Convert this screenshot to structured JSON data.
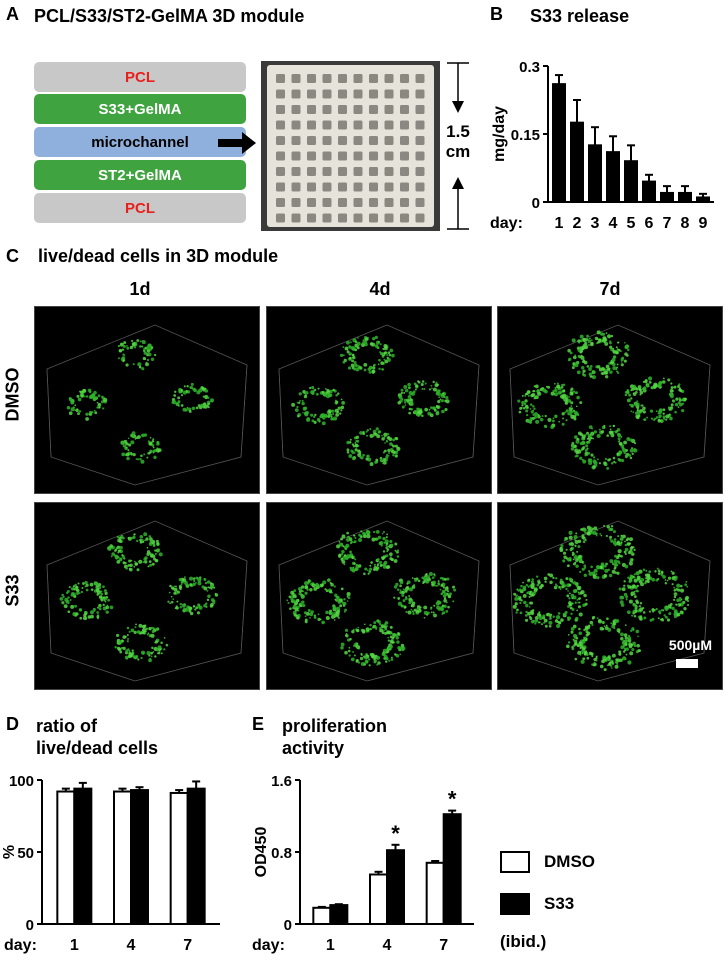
{
  "panel_a": {
    "letter": "A",
    "title": "PCL/S33/ST2-GelMA 3D module",
    "layers": [
      {
        "label": "PCL",
        "fill": "#c8c8c8",
        "text_color": "#e8201c"
      },
      {
        "label": "S33+GelMA",
        "fill": "#3fa33f",
        "text_color": "#ffffff"
      },
      {
        "label": "microchannel",
        "fill": "#8fb0dc",
        "text_color": "#000000"
      },
      {
        "label": "ST2+GelMA",
        "fill": "#3fa33f",
        "text_color": "#ffffff"
      },
      {
        "label": "PCL",
        "fill": "#c8c8c8",
        "text_color": "#e8201c"
      }
    ],
    "size_value": "1.5",
    "size_unit": "cm"
  },
  "panel_b": {
    "letter": "B",
    "title": "S33 release"
  },
  "panel_c": {
    "letter": "C",
    "title": "live/dead cells in 3D module",
    "columns": [
      "1d",
      "4d",
      "7d"
    ],
    "rows": [
      "DMSO",
      "S33"
    ],
    "scalebar": "500µM"
  },
  "panel_d": {
    "letter": "D",
    "title_line1": "ratio of",
    "title_line2": "live/dead cells"
  },
  "panel_e": {
    "letter": "E",
    "title_line1": "proliferation",
    "title_line2": "activity"
  },
  "legend": {
    "items": [
      {
        "label": "DMSO",
        "fill": "#ffffff"
      },
      {
        "label": "S33",
        "fill": "#000000"
      }
    ],
    "note": "(ibid.)"
  },
  "chart_data": [
    {
      "id": "S33-release",
      "type": "bar",
      "title": "S33 release",
      "ylabel": "mg/day",
      "xlabel": "day",
      "categories": [
        "1",
        "2",
        "3",
        "4",
        "5",
        "6",
        "7",
        "8",
        "9"
      ],
      "values": [
        0.26,
        0.175,
        0.125,
        0.11,
        0.09,
        0.045,
        0.02,
        0.02,
        0.01
      ],
      "errors": [
        0.02,
        0.05,
        0.04,
        0.035,
        0.035,
        0.015,
        0.015,
        0.015,
        0.008
      ],
      "ylim": [
        0,
        0.3
      ],
      "yticks": [
        "0",
        "0.15",
        "0.3"
      ]
    },
    {
      "id": "live-dead-ratio",
      "type": "bar",
      "title": "ratio of live/dead cells",
      "ylabel": "%",
      "xlabel": "day",
      "categories": [
        "1",
        "4",
        "7"
      ],
      "series": [
        {
          "name": "DMSO",
          "values": [
            92,
            92,
            91
          ],
          "errors": [
            2,
            2,
            2
          ]
        },
        {
          "name": "S33",
          "values": [
            94,
            93,
            94
          ],
          "errors": [
            4,
            2,
            5
          ]
        }
      ],
      "ylim": [
        0,
        100
      ],
      "yticks": [
        "0",
        "50",
        "100"
      ]
    },
    {
      "id": "proliferation",
      "type": "bar",
      "title": "proliferation activity",
      "ylabel": "OD450",
      "xlabel": "day",
      "categories": [
        "1",
        "4",
        "7"
      ],
      "series": [
        {
          "name": "DMSO",
          "values": [
            0.18,
            0.55,
            0.68
          ],
          "errors": [
            0.01,
            0.03,
            0.02
          ]
        },
        {
          "name": "S33",
          "values": [
            0.21,
            0.82,
            1.22
          ],
          "errors": [
            0.01,
            0.06,
            0.04
          ]
        }
      ],
      "significance": [
        "",
        "*",
        "*"
      ],
      "ylim": [
        0,
        1.6
      ],
      "yticks": [
        "0",
        "0.8",
        "1.6"
      ]
    }
  ]
}
